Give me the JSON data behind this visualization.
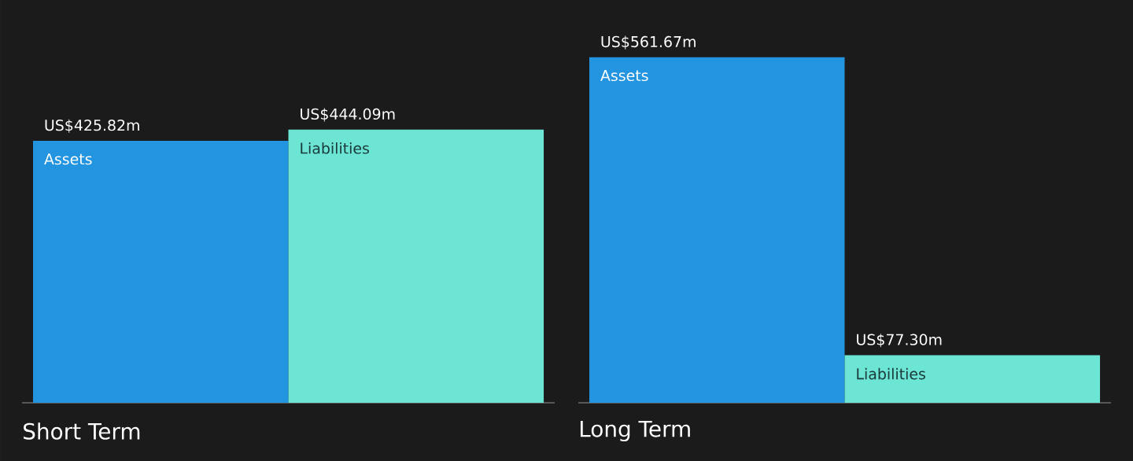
{
  "chart_data": [
    {
      "type": "bar",
      "xlabel": "Short Term",
      "categories": [
        "Assets",
        "Liabilities"
      ],
      "values": [
        425820000,
        444090000
      ],
      "colors": [
        "#2394df",
        "#6ce5d5"
      ],
      "value_labels": [
        "US$425.82m",
        "US$444.09m"
      ],
      "data_labels": true,
      "tick_labels": "x"
    },
    {
      "type": "bar",
      "xlabel": "Long Term",
      "categories": [
        "Assets",
        "Liabilities"
      ],
      "values": [
        561670000,
        77300000
      ],
      "colors": [
        "#2394df",
        "#6ce5d5"
      ],
      "value_labels": [
        "US$561.67m",
        "US$77.30m"
      ],
      "data_labels": true,
      "tick_labels": "x"
    }
  ]
}
